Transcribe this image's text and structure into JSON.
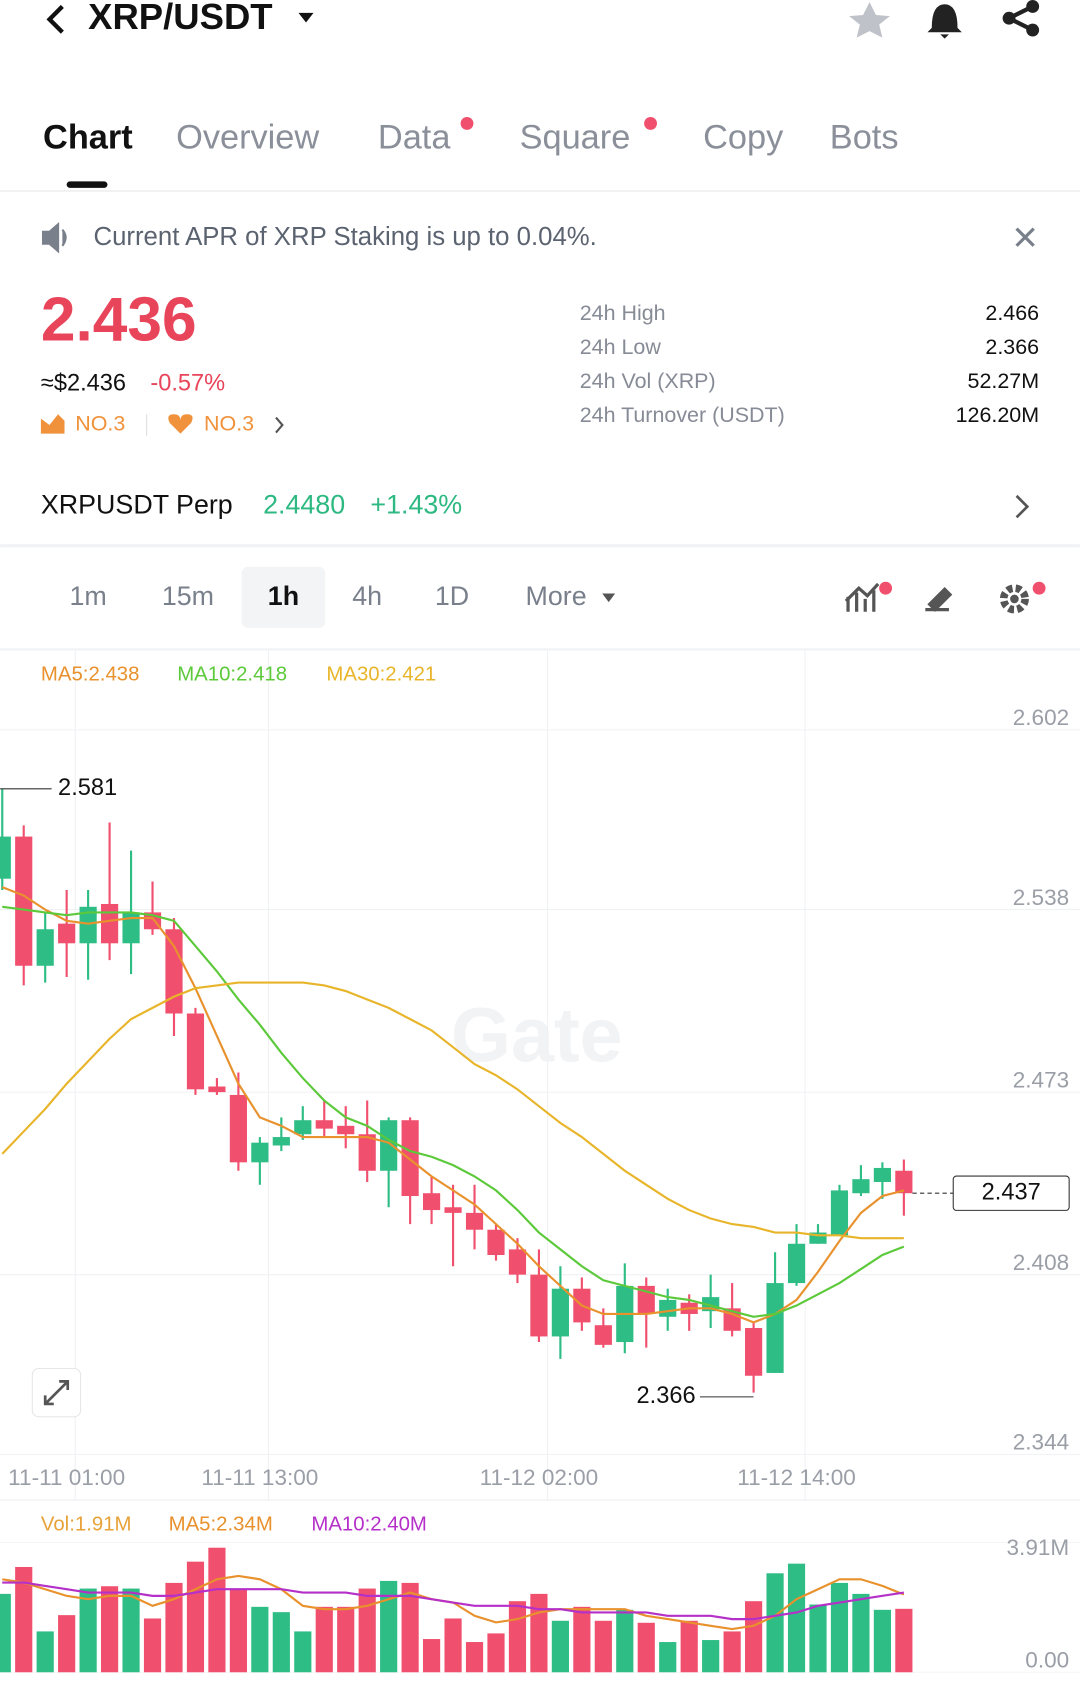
{
  "header": {
    "title": "XRP/USDT"
  },
  "tabs": [
    "Chart",
    "Overview",
    "Data",
    "Square",
    "Copy",
    "Bots"
  ],
  "notice": "Current APR of XRP Staking is up to 0.04%.",
  "price": {
    "last": "2.436",
    "usd": "≈$2.436",
    "change": "-0.57%",
    "rank_trend": "NO.3",
    "rank_fav": "NO.3"
  },
  "stats": [
    {
      "label": "24h High",
      "value": "2.466"
    },
    {
      "label": "24h Low",
      "value": "2.366"
    },
    {
      "label": "24h Vol (XRP)",
      "value": "52.27M"
    },
    {
      "label": "24h Turnover (USDT)",
      "value": "126.20M"
    }
  ],
  "perp": {
    "name": "XRPUSDT Perp",
    "price": "2.4480",
    "change": "+1.43%"
  },
  "intervals": [
    "1m",
    "15m",
    "1h",
    "4h",
    "1D",
    "More"
  ],
  "watermark": "Gate",
  "chart_data": [
    {
      "type": "candlestick",
      "up_color": "#2ebd85",
      "down_color": "#f0506e",
      "categories": [
        null,
        null,
        null,
        "11-11 01:00",
        null,
        null,
        null,
        null,
        null,
        null,
        null,
        null,
        "11-11 13:00",
        null,
        null,
        null,
        null,
        null,
        null,
        null,
        null,
        null,
        null,
        null,
        null,
        "11-12 02:00",
        null,
        null,
        null,
        null,
        null,
        null,
        null,
        null,
        null,
        null,
        null,
        "11-12 14:00",
        null,
        null,
        null,
        null,
        null
      ],
      "open": [
        2.549,
        2.564,
        2.518,
        2.533,
        2.526,
        2.54,
        2.526,
        2.537,
        2.531,
        2.501,
        2.475,
        2.472,
        2.448,
        2.454,
        2.458,
        2.463,
        2.461,
        2.458,
        2.445,
        2.463,
        2.437,
        2.432,
        2.43,
        2.424,
        2.417,
        2.408,
        2.386,
        2.403,
        2.39,
        2.384,
        2.404,
        2.393,
        2.398,
        2.395,
        2.396,
        2.389,
        2.373,
        2.405,
        2.419,
        2.422,
        2.437,
        2.441,
        2.445
      ],
      "high": [
        2.581,
        2.568,
        2.537,
        2.545,
        2.545,
        2.569,
        2.559,
        2.548,
        2.535,
        2.503,
        2.478,
        2.48,
        2.457,
        2.464,
        2.468,
        2.47,
        2.468,
        2.47,
        2.464,
        2.464,
        2.443,
        2.44,
        2.44,
        2.426,
        2.421,
        2.417,
        2.411,
        2.407,
        2.396,
        2.412,
        2.407,
        2.403,
        2.401,
        2.408,
        2.405,
        2.391,
        2.416,
        2.426,
        2.426,
        2.44,
        2.447,
        2.448,
        2.449
      ],
      "low": [
        2.545,
        2.511,
        2.512,
        2.514,
        2.513,
        2.52,
        2.515,
        2.529,
        2.493,
        2.472,
        2.472,
        2.445,
        2.44,
        2.452,
        2.456,
        2.457,
        2.453,
        2.441,
        2.432,
        2.426,
        2.426,
        2.411,
        2.417,
        2.413,
        2.405,
        2.384,
        2.378,
        2.388,
        2.382,
        2.38,
        2.382,
        2.388,
        2.388,
        2.389,
        2.386,
        2.366,
        2.373,
        2.404,
        2.419,
        2.422,
        2.436,
        2.435,
        2.429
      ],
      "close": [
        2.564,
        2.518,
        2.531,
        2.526,
        2.539,
        2.526,
        2.537,
        2.531,
        2.501,
        2.474,
        2.473,
        2.448,
        2.455,
        2.457,
        2.463,
        2.46,
        2.458,
        2.445,
        2.463,
        2.436,
        2.431,
        2.43,
        2.424,
        2.415,
        2.408,
        2.386,
        2.403,
        2.391,
        2.383,
        2.404,
        2.394,
        2.399,
        2.394,
        2.4,
        2.388,
        2.372,
        2.405,
        2.419,
        2.423,
        2.438,
        2.442,
        2.446,
        2.437
      ],
      "series": [
        {
          "name": "MA5:2.438",
          "color": "#e8912d",
          "values": [
            2.546,
            2.543,
            2.538,
            2.534,
            2.533,
            2.534,
            2.535,
            2.535,
            2.525,
            2.51,
            2.493,
            2.476,
            2.464,
            2.461,
            2.457,
            2.457,
            2.457,
            2.457,
            2.455,
            2.449,
            2.443,
            2.438,
            2.433,
            2.426,
            2.419,
            2.411,
            2.404,
            2.397,
            2.394,
            2.394,
            2.394,
            2.395,
            2.396,
            2.396,
            2.394,
            2.391,
            2.394,
            2.399,
            2.409,
            2.42,
            2.43,
            2.436,
            2.438
          ]
        },
        {
          "name": "MA10:2.418",
          "color": "#5cc93a",
          "values": [
            2.539,
            2.538,
            2.537,
            2.536,
            2.537,
            2.537,
            2.537,
            2.536,
            2.534,
            2.525,
            2.516,
            2.506,
            2.497,
            2.487,
            2.478,
            2.47,
            2.464,
            2.461,
            2.456,
            2.452,
            2.45,
            2.447,
            2.443,
            2.438,
            2.431,
            2.423,
            2.417,
            2.411,
            2.406,
            2.404,
            2.402,
            2.4,
            2.399,
            2.397,
            2.395,
            2.393,
            2.394,
            2.397,
            2.401,
            2.405,
            2.41,
            2.415,
            2.418
          ]
        },
        {
          "name": "MA30:2.421",
          "color": "#e8b52a",
          "values": [
            2.451,
            2.459,
            2.467,
            2.476,
            2.484,
            2.492,
            2.499,
            2.503,
            2.507,
            2.51,
            2.511,
            2.512,
            2.512,
            2.512,
            2.512,
            2.511,
            2.509,
            2.506,
            2.503,
            2.499,
            2.495,
            2.489,
            2.483,
            2.479,
            2.474,
            2.468,
            2.462,
            2.457,
            2.451,
            2.445,
            2.44,
            2.435,
            2.431,
            2.428,
            2.426,
            2.425,
            2.423,
            2.423,
            2.422,
            2.422,
            2.421,
            2.421,
            2.421
          ]
        }
      ],
      "ylim": [
        2.344,
        2.602
      ],
      "yticks": [
        2.344,
        2.408,
        2.473,
        2.538,
        2.602
      ],
      "grid": true
    },
    {
      "type": "bar",
      "values": [
        2.36,
        3.17,
        1.23,
        1.72,
        2.52,
        2.59,
        2.52,
        1.62,
        2.69,
        3.33,
        3.75,
        2.52,
        1.97,
        1.81,
        1.23,
        1.97,
        1.97,
        2.52,
        2.75,
        2.69,
        1.0,
        1.62,
        0.91,
        1.17,
        2.14,
        2.36,
        1.55,
        1.97,
        1.55,
        1.88,
        1.49,
        0.91,
        1.55,
        0.97,
        1.23,
        2.14,
        2.98,
        3.27,
        2.04,
        2.69,
        2.36,
        1.88,
        1.91
      ],
      "name": "Vol:1.91M",
      "name_color": "#e8a23a",
      "series": [
        {
          "name": "MA5:2.34M",
          "color": "#e8912d",
          "values": [
            2.8,
            2.7,
            2.5,
            2.3,
            2.2,
            2.3,
            2.3,
            2.0,
            2.2,
            2.5,
            2.8,
            2.9,
            2.8,
            2.5,
            2.0,
            1.9,
            1.9,
            2.0,
            2.2,
            2.4,
            2.2,
            2.1,
            1.7,
            1.5,
            1.6,
            1.8,
            1.9,
            1.9,
            1.9,
            1.9,
            1.7,
            1.6,
            1.5,
            1.4,
            1.3,
            1.4,
            1.7,
            2.2,
            2.5,
            2.8,
            2.8,
            2.6,
            2.34
          ]
        },
        {
          "name": "MA10:2.40M",
          "color": "#b530c9",
          "values": [
            2.7,
            2.7,
            2.6,
            2.5,
            2.4,
            2.4,
            2.4,
            2.3,
            2.3,
            2.4,
            2.5,
            2.5,
            2.5,
            2.5,
            2.4,
            2.4,
            2.4,
            2.3,
            2.3,
            2.3,
            2.2,
            2.1,
            2.0,
            2.0,
            2.0,
            1.9,
            1.9,
            1.8,
            1.8,
            1.8,
            1.8,
            1.7,
            1.7,
            1.7,
            1.6,
            1.6,
            1.7,
            1.8,
            2.0,
            2.1,
            2.2,
            2.3,
            2.4
          ]
        }
      ],
      "ylim": [
        0,
        3.91
      ],
      "yticks": [
        {
          "value": 0,
          "label": "0.00"
        },
        {
          "value": 3.91,
          "label": "3.91M"
        }
      ]
    }
  ]
}
